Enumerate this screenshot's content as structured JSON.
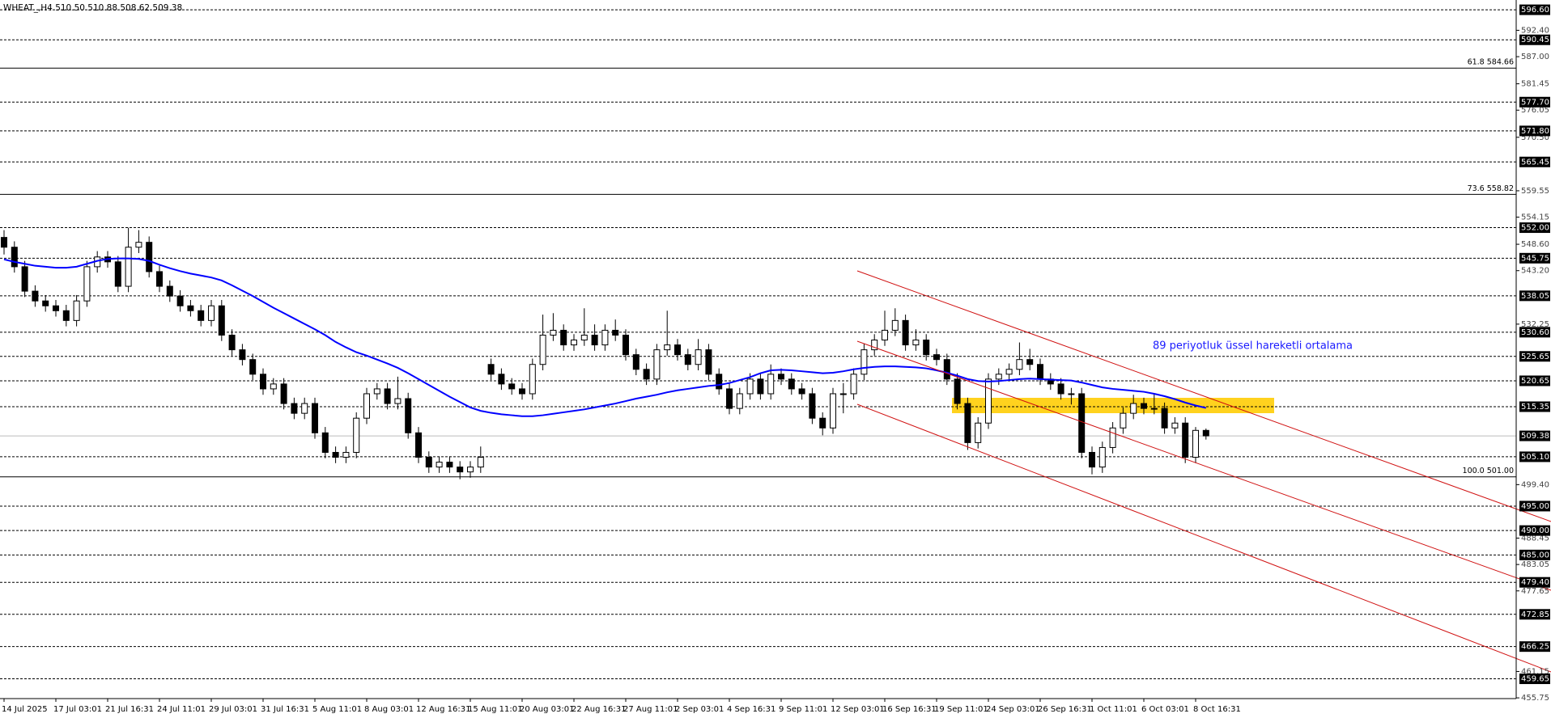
{
  "chart_data": {
    "type": "candlestick",
    "title": "WHEAT_,H4  510.50 510.88 508.62 509.38",
    "annotation": "89 periyotluk üssel hareketli ortalama",
    "ylim": [
      455.6,
      598.6
    ],
    "up_color": "#ffffff",
    "down_color": "#000000",
    "categories": [
      "14 Jul 2025",
      null,
      null,
      null,
      null,
      "17 Jul 03:01",
      null,
      null,
      null,
      null,
      "21 Jul 16:31",
      null,
      null,
      null,
      null,
      "24 Jul 11:01",
      null,
      null,
      null,
      null,
      "29 Jul 03:01",
      null,
      null,
      null,
      null,
      "31 Jul 16:31",
      null,
      null,
      null,
      null,
      "5 Aug 11:01",
      null,
      null,
      null,
      null,
      "8 Aug 03:01",
      null,
      null,
      null,
      null,
      "12 Aug 16:31",
      null,
      null,
      null,
      null,
      "15 Aug 11:01",
      null,
      null,
      null,
      null,
      "20 Aug 03:01",
      null,
      null,
      null,
      null,
      "22 Aug 16:31",
      null,
      null,
      null,
      null,
      "27 Aug 11:01",
      null,
      null,
      null,
      null,
      "2 Sep 03:01",
      null,
      null,
      null,
      null,
      "4 Sep 16:31",
      null,
      null,
      null,
      null,
      "9 Sep 11:01",
      null,
      null,
      null,
      null,
      "12 Sep 03:01",
      null,
      null,
      null,
      null,
      "16 Sep 16:31",
      null,
      null,
      null,
      null,
      "19 Sep 11:01",
      null,
      null,
      null,
      null,
      "24 Sep 03:01",
      null,
      null,
      null,
      null,
      "26 Sep 16:31",
      null,
      null,
      null,
      null,
      "1 Oct 11:01",
      null,
      null,
      null,
      null,
      "6 Oct 03:01",
      null,
      null,
      null,
      null,
      "8 Oct 16:31",
      null
    ],
    "candles": [
      [
        550,
        551.5,
        546.5,
        548
      ],
      [
        548,
        549.2,
        542.8,
        544
      ],
      [
        544,
        545.2,
        537.8,
        539
      ],
      [
        539,
        540.2,
        535.8,
        537
      ],
      [
        537,
        538.2,
        534.8,
        536
      ],
      [
        536,
        537.2,
        533.8,
        535
      ],
      [
        535,
        536.2,
        531.8,
        533
      ],
      [
        533,
        538.2,
        531.8,
        537
      ],
      [
        537,
        545.2,
        535.8,
        544
      ],
      [
        544,
        547.2,
        542.8,
        546
      ],
      [
        546,
        547.2,
        543.8,
        545
      ],
      [
        545,
        546.2,
        538.8,
        540
      ],
      [
        540,
        552,
        538.8,
        548
      ],
      [
        548,
        551.5,
        546.8,
        549
      ],
      [
        549,
        550.2,
        541.8,
        543
      ],
      [
        543,
        544.2,
        538.8,
        540
      ],
      [
        540,
        541.2,
        536.8,
        538
      ],
      [
        538,
        539.2,
        534.8,
        536
      ],
      [
        536,
        537.2,
        533.8,
        535
      ],
      [
        535,
        536.2,
        531.8,
        533
      ],
      [
        533,
        537.2,
        531.8,
        536
      ],
      [
        536,
        537.2,
        528.8,
        530
      ],
      [
        530,
        531.2,
        525.8,
        527
      ],
      [
        527,
        528.2,
        523.8,
        525
      ],
      [
        525,
        526.2,
        520.8,
        522
      ],
      [
        522,
        523.2,
        517.8,
        519
      ],
      [
        519,
        521.2,
        517.8,
        520
      ],
      [
        520,
        521.2,
        514.8,
        516
      ],
      [
        516,
        517.2,
        512.8,
        514
      ],
      [
        514,
        517.2,
        512.8,
        516
      ],
      [
        516,
        517.2,
        508.8,
        510
      ],
      [
        510,
        511.2,
        504.8,
        506
      ],
      [
        506,
        507.2,
        503.8,
        505
      ],
      [
        505,
        507.2,
        503.8,
        506
      ],
      [
        506,
        514.2,
        504.8,
        513
      ],
      [
        513,
        519.2,
        511.8,
        518
      ],
      [
        518,
        520.2,
        516.8,
        519
      ],
      [
        519,
        520.2,
        514.8,
        516
      ],
      [
        516,
        521.5,
        514.8,
        517
      ],
      [
        517,
        518.2,
        508.8,
        510
      ],
      [
        510,
        511.2,
        503.8,
        505
      ],
      [
        505,
        506.2,
        501.8,
        503
      ],
      [
        503,
        505.2,
        501.8,
        504
      ],
      [
        504,
        505.2,
        501.8,
        503
      ],
      [
        503,
        504.2,
        500.5,
        502
      ],
      [
        502,
        504.2,
        500.8,
        503
      ],
      [
        503,
        507.2,
        501.8,
        505
      ],
      [
        524,
        525.2,
        520.8,
        522
      ],
      [
        522,
        523.2,
        518.8,
        520
      ],
      [
        520,
        521.2,
        517.8,
        519
      ],
      [
        519,
        520.2,
        516.8,
        518
      ],
      [
        518,
        525.2,
        516.8,
        524
      ],
      [
        524,
        534.2,
        522.8,
        530
      ],
      [
        530,
        534.5,
        528.8,
        531
      ],
      [
        531,
        532.2,
        526.8,
        528
      ],
      [
        528,
        530.2,
        526.8,
        529
      ],
      [
        529,
        535.5,
        527.8,
        530
      ],
      [
        530,
        532.2,
        526.8,
        528
      ],
      [
        528,
        532.2,
        526.8,
        531
      ],
      [
        531,
        533.2,
        528.8,
        530
      ],
      [
        530,
        531.2,
        524.8,
        526
      ],
      [
        526,
        527.2,
        521.8,
        523
      ],
      [
        523,
        524.2,
        519.8,
        521
      ],
      [
        521,
        528.2,
        519.8,
        527
      ],
      [
        527,
        535,
        525.8,
        528
      ],
      [
        528,
        529.2,
        524.8,
        526
      ],
      [
        526,
        527.2,
        522.8,
        524
      ],
      [
        524,
        529.2,
        522.8,
        527
      ],
      [
        527,
        528.2,
        520.8,
        522
      ],
      [
        522,
        523.2,
        517.8,
        519
      ],
      [
        519,
        520.2,
        513.8,
        515
      ],
      [
        515,
        519.2,
        513.8,
        518
      ],
      [
        518,
        522.2,
        516.8,
        521
      ],
      [
        521,
        522.2,
        516.8,
        518
      ],
      [
        518,
        524,
        516.8,
        522
      ],
      [
        522,
        523.2,
        519.8,
        521
      ],
      [
        521,
        522.2,
        517.8,
        519
      ],
      [
        519,
        520.2,
        516.8,
        518
      ],
      [
        518,
        519.2,
        511.8,
        513
      ],
      [
        513,
        514.2,
        509.5,
        511
      ],
      [
        511,
        519.2,
        509.8,
        518
      ],
      [
        518,
        520.2,
        514,
        518
      ],
      [
        518,
        523.2,
        516.8,
        522
      ],
      [
        522,
        528.2,
        520.8,
        527
      ],
      [
        527,
        530.2,
        525.8,
        529
      ],
      [
        529,
        535,
        527.8,
        531
      ],
      [
        531,
        535.5,
        529.8,
        533
      ],
      [
        533,
        534.2,
        526.8,
        528
      ],
      [
        528,
        531.2,
        526.8,
        529
      ],
      [
        529,
        530.2,
        524.8,
        526
      ],
      [
        526,
        527.2,
        523.8,
        525
      ],
      [
        525,
        526.2,
        519.8,
        521
      ],
      [
        521,
        522.2,
        514.8,
        516
      ],
      [
        516,
        517.2,
        506.5,
        508
      ],
      [
        508,
        513.2,
        506.8,
        512
      ],
      [
        512,
        522.2,
        510.8,
        521
      ],
      [
        521,
        523.2,
        519.8,
        522
      ],
      [
        522,
        524.2,
        520.8,
        523
      ],
      [
        523,
        528.5,
        521.8,
        525
      ],
      [
        525,
        527.2,
        522.8,
        524
      ],
      [
        524,
        525.2,
        519.8,
        521
      ],
      [
        521,
        522.2,
        518.8,
        520
      ],
      [
        520,
        521.2,
        516.8,
        518
      ],
      [
        518,
        519.2,
        515.8,
        518
      ],
      [
        518,
        519.2,
        504.8,
        506
      ],
      [
        506,
        507.2,
        501.5,
        503
      ],
      [
        503,
        508.2,
        501.8,
        507
      ],
      [
        507,
        512.2,
        505.8,
        511
      ],
      [
        511,
        515.2,
        509.8,
        514
      ],
      [
        514,
        517.8,
        512.8,
        516
      ],
      [
        516,
        517.2,
        513.8,
        515
      ],
      [
        515,
        518,
        513.8,
        515
      ],
      [
        515,
        516.2,
        509.8,
        511
      ],
      [
        511,
        513.2,
        509.8,
        512
      ],
      [
        512,
        513.2,
        503.8,
        505
      ],
      [
        505,
        511.2,
        503.8,
        510.5
      ],
      [
        510.5,
        510.88,
        508.62,
        509.38
      ]
    ],
    "ema": {
      "color": "#0000ff",
      "values": [
        545.5,
        545,
        544.6,
        544.2,
        544,
        543.8,
        543.8,
        544,
        544.6,
        545.2,
        545.6,
        545.7,
        545.7,
        545.6,
        545.2,
        544.4,
        543.7,
        543.1,
        542.6,
        542.2,
        541.8,
        541.2,
        540.2,
        539.1,
        538,
        536.8,
        535.6,
        534.5,
        533.4,
        532.3,
        531.2,
        530,
        528.6,
        527.5,
        526.5,
        525.8,
        525,
        524.2,
        523.3,
        522.2,
        521,
        519.8,
        518.6,
        517.4,
        516.3,
        515.2,
        514.5,
        514.1,
        513.8,
        513.6,
        513.4,
        513.4,
        513.6,
        513.9,
        514.2,
        514.5,
        514.8,
        515.2,
        515.6,
        516,
        516.5,
        517,
        517.4,
        517.8,
        518.3,
        518.7,
        519,
        519.3,
        519.6,
        519.8,
        520.2,
        520.8,
        521.4,
        522.2,
        522.8,
        522.9,
        522.8,
        522.6,
        522.4,
        522.2,
        522.3,
        522.6,
        523,
        523.3,
        523.5,
        523.6,
        523.6,
        523.5,
        523.4,
        523.2,
        522.8,
        522.3,
        521.7,
        521,
        520.6,
        520.5,
        520.6,
        520.8,
        521,
        521.1,
        521,
        520.9,
        520.8,
        520.7,
        520.3,
        519.8,
        519.3,
        519,
        518.8,
        518.6,
        518.4,
        518,
        517.5,
        516.9,
        516.2,
        515.6,
        515.1
      ]
    },
    "yticks": [
      {
        "value": 592.4,
        "label": "592.40"
      },
      {
        "value": 587,
        "label": "587.00"
      },
      {
        "value": 581.45,
        "label": "581.45"
      },
      {
        "value": 576.05,
        "label": "576.05"
      },
      {
        "value": 570.5,
        "label": "570.50"
      },
      {
        "value": 559.55,
        "label": "559.55"
      },
      {
        "value": 554.15,
        "label": "554.15"
      },
      {
        "value": 548.6,
        "label": "548.60"
      },
      {
        "value": 543.2,
        "label": "543.20"
      },
      {
        "value": 532.25,
        "label": "532.25"
      },
      {
        "value": 499.4,
        "label": "499.40"
      },
      {
        "value": 488.45,
        "label": "488.45"
      },
      {
        "value": 483.05,
        "label": "483.05"
      },
      {
        "value": 477.65,
        "label": "477.65"
      },
      {
        "value": 461.15,
        "label": "461.15"
      },
      {
        "value": 455.75,
        "label": "455.75"
      }
    ],
    "levels": [
      {
        "value": 596.6,
        "label": "596.60"
      },
      {
        "value": 590.45,
        "label": "590.45"
      },
      {
        "value": 577.7,
        "label": "577.70"
      },
      {
        "value": 571.8,
        "label": "571.80"
      },
      {
        "value": 565.45,
        "label": "565.45"
      },
      {
        "value": 552,
        "label": "552.00"
      },
      {
        "value": 545.75,
        "label": "545.75"
      },
      {
        "value": 538.05,
        "label": "538.05"
      },
      {
        "value": 530.6,
        "label": "530.60"
      },
      {
        "value": 525.65,
        "label": "525.65"
      },
      {
        "value": 520.65,
        "label": "520.65"
      },
      {
        "value": 515.35,
        "label": "515.35"
      },
      {
        "value": 505.1,
        "label": "505.10"
      },
      {
        "value": 495,
        "label": "495.00"
      },
      {
        "value": 490,
        "label": "490.00"
      },
      {
        "value": 485,
        "label": "485.00"
      },
      {
        "value": 479.4,
        "label": "479.40"
      },
      {
        "value": 472.85,
        "label": "472.85"
      },
      {
        "value": 466.25,
        "label": "466.25"
      },
      {
        "value": 459.65,
        "label": "459.65"
      }
    ],
    "current_price": {
      "value": 509.38,
      "label": "509.38"
    },
    "fib_levels": [
      {
        "value": 584.66,
        "label": "61.8 584.66"
      },
      {
        "value": 558.82,
        "label": "73.6 558.82"
      },
      {
        "value": 501,
        "label": "100.0 501.00"
      }
    ]
  }
}
